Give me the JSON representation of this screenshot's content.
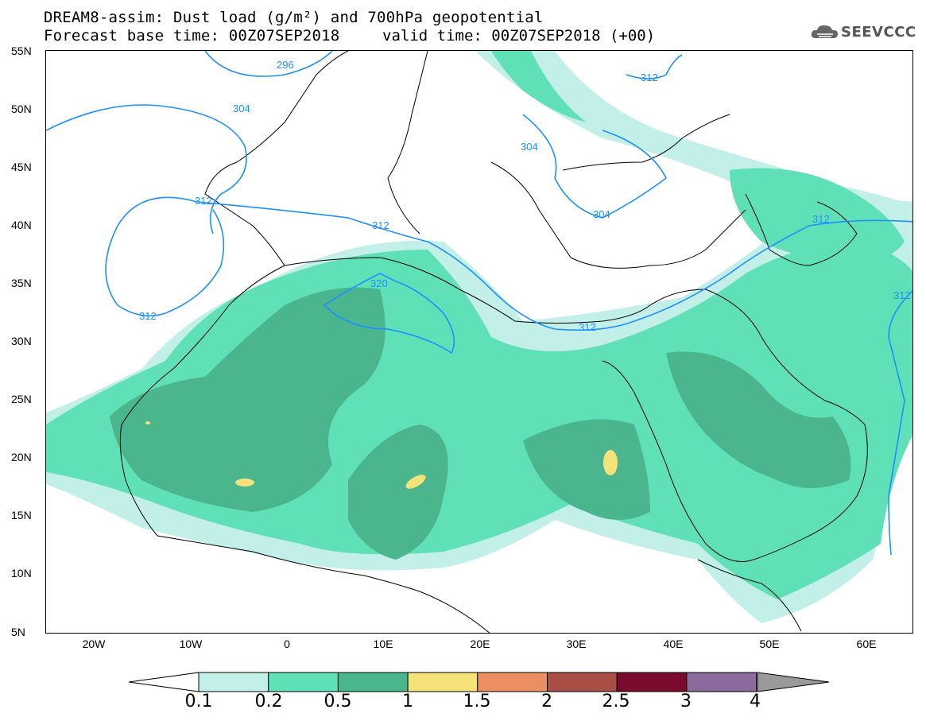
{
  "header": {
    "title_line1": "DREAM8-assim: Dust load (g/m²) and 700hPa geopotential",
    "title_line2": "Forecast base time: 00Z07SEP2018",
    "valid_time": "valid time: 00Z07SEP2018 (+00)",
    "logo_text": "SEEVCCC"
  },
  "map": {
    "lat_labels": [
      "55N",
      "50N",
      "45N",
      "40N",
      "35N",
      "30N",
      "25N",
      "20N",
      "15N",
      "10N",
      "5N"
    ],
    "lon_labels": [
      "20W",
      "10W",
      "0",
      "10E",
      "20E",
      "30E",
      "40E",
      "50E",
      "60E"
    ],
    "contour_labels": [
      "296",
      "304",
      "304",
      "304",
      "312",
      "312",
      "312",
      "312",
      "312",
      "312",
      "320",
      "312"
    ],
    "contour_color": "#1e90ff"
  },
  "legend": {
    "levels": [
      "0.1",
      "0.2",
      "0.5",
      "1",
      "1.5",
      "2",
      "2.5",
      "3",
      "4"
    ],
    "colors": [
      "#c2efe8",
      "#5fe0b6",
      "#4bb68e",
      "#f5e37a",
      "#eb8f63",
      "#a94e45",
      "#7a0b2f",
      "#8d6a9e",
      "#9a9a9a"
    ],
    "under_color": "#ffffff"
  }
}
